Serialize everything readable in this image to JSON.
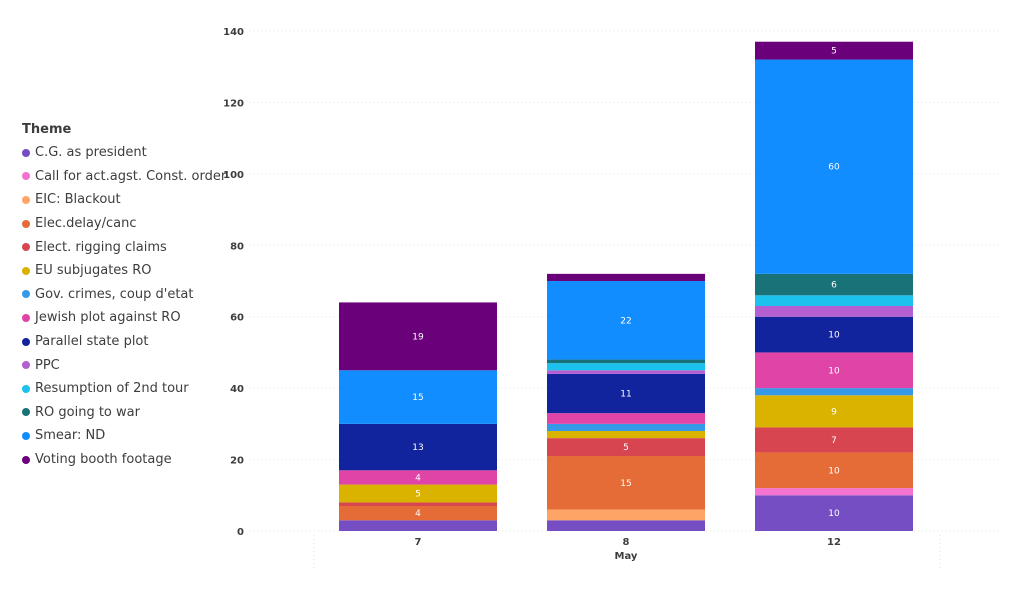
{
  "legend": {
    "title": "Theme"
  },
  "chart_data": {
    "type": "bar",
    "stacked": true,
    "categories": [
      "7",
      "8",
      "12"
    ],
    "xlabel": "May",
    "ylabel": "",
    "ylim": [
      0,
      140
    ],
    "yticks": [
      0,
      20,
      40,
      60,
      80,
      100,
      120,
      140
    ],
    "grid": true,
    "legend_position": "left",
    "series": [
      {
        "name": "C.G. as president",
        "color": "#744EC2",
        "values": [
          3,
          3,
          10
        ],
        "labels": [
          "",
          "",
          "10"
        ]
      },
      {
        "name": "Call for act.agst. Const. order",
        "color": "#F472D0",
        "values": [
          0,
          0,
          2
        ],
        "labels": [
          "",
          "",
          ""
        ]
      },
      {
        "name": "EIC: Blackout",
        "color": "#FEA466",
        "values": [
          0,
          3,
          0
        ],
        "labels": [
          "",
          "",
          ""
        ]
      },
      {
        "name": "Elec.delay/canc",
        "color": "#E66C37",
        "values": [
          4,
          15,
          10
        ],
        "labels": [
          "4",
          "15",
          "10"
        ]
      },
      {
        "name": "Elect. rigging claims",
        "color": "#D64550",
        "values": [
          1,
          5,
          7
        ],
        "labels": [
          "",
          "5",
          "7"
        ]
      },
      {
        "name": "EU subjugates RO",
        "color": "#D9B300",
        "values": [
          5,
          2,
          9
        ],
        "labels": [
          "5",
          "",
          "9"
        ]
      },
      {
        "name": "Gov. crimes, coup d'etat",
        "color": "#3599E8",
        "values": [
          0,
          2,
          2
        ],
        "labels": [
          "",
          "",
          ""
        ]
      },
      {
        "name": "Jewish plot against RO",
        "color": "#E044A7",
        "values": [
          4,
          3,
          10
        ],
        "labels": [
          "4",
          "",
          "10"
        ]
      },
      {
        "name": "Parallel state plot",
        "color": "#12239E",
        "values": [
          13,
          11,
          10
        ],
        "labels": [
          "13",
          "11",
          "10"
        ]
      },
      {
        "name": "PPC",
        "color": "#B45FD1",
        "values": [
          0,
          1,
          3
        ],
        "labels": [
          "",
          "",
          ""
        ]
      },
      {
        "name": "Resumption of 2nd tour",
        "color": "#1BC2EE",
        "values": [
          0,
          2,
          3
        ],
        "labels": [
          "",
          "",
          ""
        ]
      },
      {
        "name": "RO going to war",
        "color": "#197278",
        "values": [
          0,
          1,
          6
        ],
        "labels": [
          "",
          "",
          "6"
        ]
      },
      {
        "name": "Smear: ND",
        "color": "#118DFF",
        "values": [
          15,
          22,
          60
        ],
        "labels": [
          "15",
          "22",
          "60"
        ]
      },
      {
        "name": "Voting booth footage",
        "color": "#6B007B",
        "values": [
          19,
          2,
          5
        ],
        "labels": [
          "19",
          "",
          "5"
        ]
      }
    ]
  }
}
